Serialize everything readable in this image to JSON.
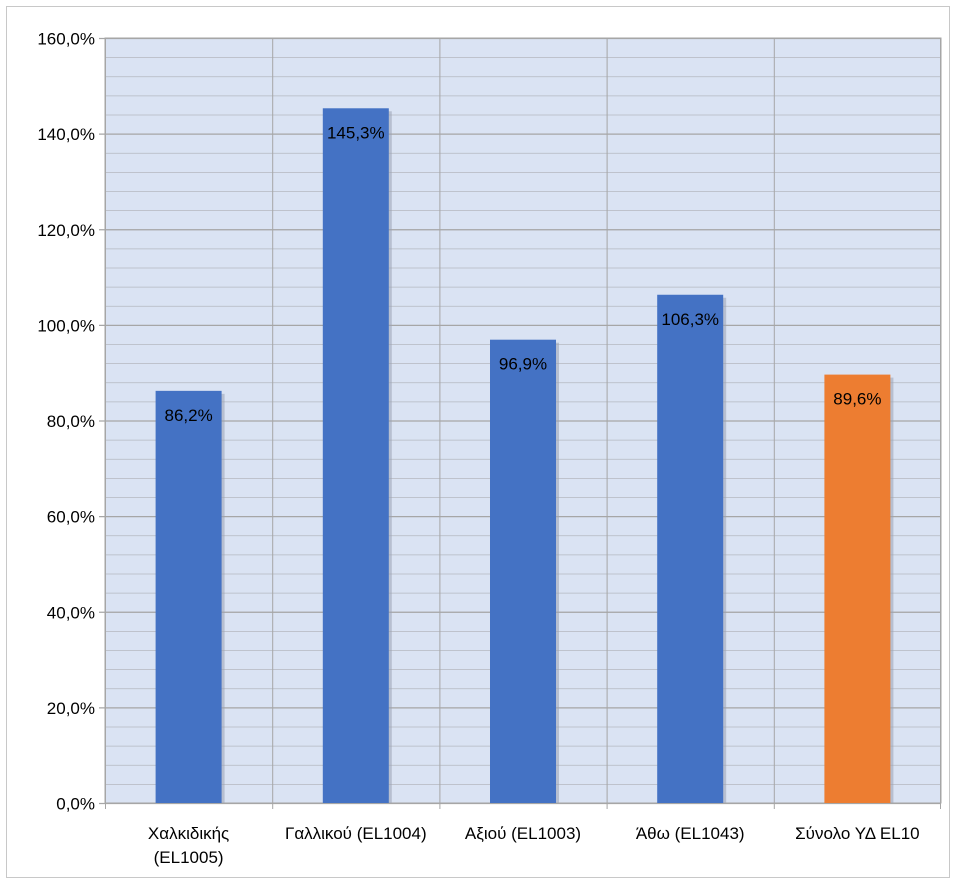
{
  "chart_data": {
    "type": "bar",
    "categories": [
      [
        "Χαλκιδικής",
        "(EL1005)"
      ],
      [
        "Γαλλικού (EL1004)"
      ],
      [
        "Αξιού (EL1003)"
      ],
      [
        "Άθω (EL1043)"
      ],
      [
        "Σύνολο ΥΔ EL10"
      ]
    ],
    "values": [
      86.2,
      145.3,
      96.9,
      106.3,
      89.6
    ],
    "data_labels": [
      "86,2%",
      "145,3%",
      "96,9%",
      "106,3%",
      "89,6%"
    ],
    "bar_colors": [
      "#4472c4",
      "#4472c4",
      "#4472c4",
      "#4472c4",
      "#ed7d31"
    ],
    "ylim": [
      0,
      160
    ],
    "yticks": [
      0,
      20,
      40,
      60,
      80,
      100,
      120,
      140,
      160
    ],
    "ytick_labels": [
      "0,0%",
      "20,0%",
      "40,0%",
      "60,0%",
      "80,0%",
      "100,0%",
      "120,0%",
      "140,0%",
      "160,0%"
    ],
    "minor_step": 4,
    "grid": true,
    "legend": "none",
    "title": "",
    "xlabel": "",
    "ylabel": "",
    "colors": {
      "plot_background": "#dae3f3",
      "gridline": "#a6a6a6",
      "axis_text": "#000000"
    }
  }
}
